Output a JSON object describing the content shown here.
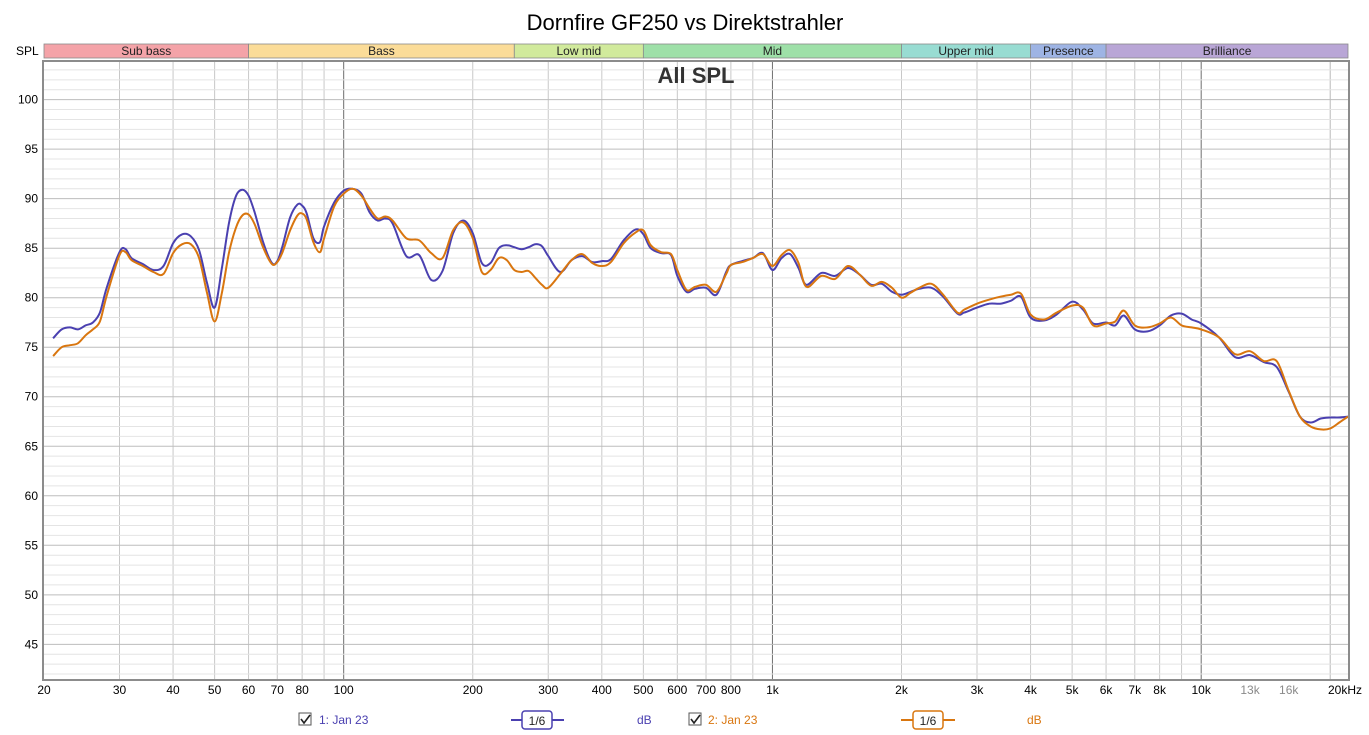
{
  "chart_data": {
    "type": "line",
    "title": "Dornfire GF250 vs Direktstrahler",
    "inner_title": "All SPL",
    "ylabel": "SPL",
    "x_scale": "log",
    "xlim": [
      20,
      22000
    ],
    "ylim": [
      41.5,
      103.8
    ],
    "grid": true,
    "y_ticks": [
      45,
      50,
      55,
      60,
      65,
      70,
      75,
      80,
      85,
      90,
      95,
      100
    ],
    "x_ticks": [
      {
        "value": 20,
        "label": "20"
      },
      {
        "value": 30,
        "label": "30"
      },
      {
        "value": 40,
        "label": "40"
      },
      {
        "value": 50,
        "label": "50"
      },
      {
        "value": 60,
        "label": "60"
      },
      {
        "value": 70,
        "label": "70"
      },
      {
        "value": 80,
        "label": "80"
      },
      {
        "value": 100,
        "label": "100"
      },
      {
        "value": 200,
        "label": "200"
      },
      {
        "value": 300,
        "label": "300"
      },
      {
        "value": 400,
        "label": "400"
      },
      {
        "value": 500,
        "label": "500"
      },
      {
        "value": 600,
        "label": "600"
      },
      {
        "value": 700,
        "label": "700"
      },
      {
        "value": 800,
        "label": "800"
      },
      {
        "value": 1000,
        "label": "1k"
      },
      {
        "value": 2000,
        "label": "2k"
      },
      {
        "value": 3000,
        "label": "3k"
      },
      {
        "value": 4000,
        "label": "4k"
      },
      {
        "value": 5000,
        "label": "5k"
      },
      {
        "value": 6000,
        "label": "6k"
      },
      {
        "value": 7000,
        "label": "7k"
      },
      {
        "value": 8000,
        "label": "8k"
      },
      {
        "value": 10000,
        "label": "10k"
      },
      {
        "value": 13000,
        "label": "13k",
        "muted": true
      },
      {
        "value": 16000,
        "label": "16k",
        "muted": true
      },
      {
        "value": 20000,
        "label": "20kHz"
      }
    ],
    "bands": [
      {
        "name": "Sub bass",
        "from": 20,
        "to": 60,
        "color": "#f4a3a8"
      },
      {
        "name": "Bass",
        "from": 60,
        "to": 250,
        "color": "#fbdc98"
      },
      {
        "name": "Low mid",
        "from": 250,
        "to": 500,
        "color": "#d1ea9c"
      },
      {
        "name": "Mid",
        "from": 500,
        "to": 2000,
        "color": "#9ee0a8"
      },
      {
        "name": "Upper mid",
        "from": 2000,
        "to": 4000,
        "color": "#98dcd2"
      },
      {
        "name": "Presence",
        "from": 4000,
        "to": 6000,
        "color": "#9eb4e4"
      },
      {
        "name": "Brilliance",
        "from": 6000,
        "to": 22000,
        "color": "#b9a6d6"
      }
    ],
    "series": [
      {
        "name": "1: Jan 23",
        "color": "#4a40b0",
        "smoothing": "1/6",
        "unit": "dB",
        "x": [
          21,
          22,
          23,
          24,
          25,
          26,
          27,
          28,
          30,
          31,
          32,
          34,
          36,
          38,
          40,
          42,
          44,
          46,
          48,
          50,
          52,
          54,
          56,
          58,
          60,
          62,
          65,
          68,
          70,
          72,
          75,
          78,
          80,
          82,
          85,
          88,
          90,
          95,
          100,
          105,
          110,
          115,
          120,
          125,
          130,
          140,
          150,
          160,
          170,
          180,
          190,
          200,
          210,
          220,
          230,
          240,
          250,
          260,
          270,
          280,
          290,
          300,
          320,
          340,
          360,
          380,
          400,
          420,
          450,
          480,
          500,
          520,
          550,
          580,
          600,
          630,
          660,
          700,
          740,
          780,
          800,
          850,
          900,
          950,
          1000,
          1050,
          1100,
          1150,
          1200,
          1300,
          1400,
          1500,
          1600,
          1700,
          1800,
          1900,
          2000,
          2100,
          2200,
          2350,
          2500,
          2700,
          2800,
          3000,
          3200,
          3400,
          3600,
          3800,
          4000,
          4300,
          4600,
          5000,
          5300,
          5600,
          6000,
          6300,
          6600,
          7000,
          7500,
          8000,
          8500,
          9000,
          9500,
          10000,
          11000,
          12000,
          13000,
          14000,
          15000,
          16000,
          17000,
          18000,
          19000,
          20000,
          21000,
          22000
        ],
        "y": [
          75.9,
          76.8,
          77.0,
          76.8,
          77.2,
          77.5,
          78.5,
          81.0,
          84.6,
          84.9,
          84.0,
          83.4,
          82.8,
          83.2,
          85.5,
          86.4,
          86.2,
          84.8,
          81.5,
          79.0,
          83.0,
          87.5,
          90.2,
          90.9,
          90.3,
          88.6,
          85.5,
          83.5,
          83.7,
          85.2,
          88.1,
          89.4,
          89.3,
          88.5,
          86.0,
          85.6,
          87.2,
          89.6,
          90.8,
          91.0,
          90.5,
          88.6,
          87.8,
          88.0,
          87.5,
          84.2,
          84.3,
          81.8,
          82.7,
          86.5,
          87.8,
          86.5,
          83.5,
          83.5,
          85.0,
          85.3,
          85.1,
          84.9,
          85.1,
          85.4,
          85.2,
          84.2,
          82.6,
          83.8,
          84.2,
          83.6,
          83.7,
          83.9,
          85.8,
          86.9,
          86.4,
          85.0,
          84.5,
          84.3,
          82.2,
          80.6,
          80.9,
          81.0,
          80.3,
          82.6,
          83.3,
          83.7,
          84.0,
          84.5,
          82.8,
          84.0,
          84.4,
          83.0,
          81.3,
          82.5,
          82.2,
          83.0,
          82.3,
          81.3,
          81.4,
          80.6,
          80.3,
          80.6,
          80.9,
          81.0,
          80.1,
          78.4,
          78.5,
          79.0,
          79.4,
          79.4,
          79.7,
          80.1,
          78.0,
          77.7,
          78.3,
          79.6,
          78.8,
          77.4,
          77.5,
          77.2,
          78.2,
          76.8,
          76.6,
          77.2,
          78.2,
          78.4,
          77.8,
          77.4,
          76.0,
          74.0,
          74.2,
          73.5,
          73.0,
          70.5,
          68.0,
          67.4,
          67.8,
          67.9,
          67.9,
          68.0
        ]
      },
      {
        "name": "2: Jan 23",
        "color": "#d9760f",
        "smoothing": "1/6",
        "unit": "dB",
        "x": [
          21,
          22,
          23,
          24,
          25,
          26,
          27,
          28,
          30,
          31,
          32,
          34,
          36,
          38,
          40,
          42,
          44,
          46,
          48,
          50,
          52,
          54,
          56,
          58,
          60,
          62,
          65,
          68,
          70,
          72,
          75,
          78,
          80,
          82,
          85,
          88,
          90,
          95,
          100,
          105,
          110,
          115,
          120,
          125,
          130,
          140,
          150,
          160,
          170,
          180,
          190,
          200,
          210,
          220,
          230,
          240,
          250,
          260,
          270,
          280,
          290,
          300,
          320,
          340,
          360,
          380,
          400,
          420,
          450,
          480,
          500,
          520,
          550,
          580,
          600,
          630,
          660,
          700,
          740,
          780,
          800,
          850,
          900,
          950,
          1000,
          1050,
          1100,
          1150,
          1200,
          1300,
          1400,
          1500,
          1600,
          1700,
          1800,
          1900,
          2000,
          2100,
          2200,
          2350,
          2500,
          2700,
          2800,
          3000,
          3200,
          3400,
          3600,
          3800,
          4000,
          4300,
          4600,
          5000,
          5300,
          5600,
          6000,
          6300,
          6600,
          7000,
          7500,
          8000,
          8500,
          9000,
          9500,
          10000,
          11000,
          12000,
          13000,
          14000,
          15000,
          16000,
          17000,
          18000,
          19000,
          20000,
          21000,
          22000
        ],
        "y": [
          74.1,
          75.0,
          75.2,
          75.4,
          76.2,
          76.8,
          77.6,
          80.2,
          84.3,
          84.6,
          83.8,
          83.2,
          82.6,
          82.4,
          84.5,
          85.4,
          85.4,
          84.0,
          80.5,
          77.6,
          80.5,
          84.5,
          87.0,
          88.3,
          88.4,
          87.4,
          85.0,
          83.4,
          83.6,
          84.6,
          86.8,
          88.3,
          88.5,
          87.9,
          85.6,
          84.6,
          86.0,
          89.2,
          90.5,
          91.0,
          90.3,
          89.0,
          88.0,
          88.2,
          87.8,
          86.0,
          85.8,
          84.5,
          84.0,
          86.8,
          87.6,
          86.0,
          82.6,
          82.8,
          84.0,
          83.8,
          82.8,
          82.6,
          82.7,
          82.0,
          81.3,
          81.0,
          82.4,
          83.8,
          84.4,
          83.5,
          83.2,
          83.6,
          85.5,
          86.6,
          86.8,
          85.3,
          84.6,
          84.4,
          82.8,
          80.8,
          81.1,
          81.3,
          80.6,
          82.4,
          83.3,
          83.6,
          84.0,
          84.4,
          83.2,
          84.3,
          84.8,
          83.5,
          81.1,
          82.2,
          81.9,
          83.2,
          82.3,
          81.2,
          81.6,
          81.0,
          80.0,
          80.5,
          81.0,
          81.4,
          80.3,
          78.5,
          78.8,
          79.4,
          79.8,
          80.1,
          80.3,
          80.4,
          78.3,
          77.8,
          78.5,
          79.2,
          79.0,
          77.2,
          77.4,
          77.6,
          78.7,
          77.2,
          77.0,
          77.4,
          78.0,
          77.2,
          77.0,
          76.8,
          76.0,
          74.3,
          74.6,
          73.6,
          73.6,
          70.6,
          68.0,
          67.0,
          66.7,
          66.8,
          67.4,
          68.0
        ]
      }
    ]
  },
  "legend": {
    "series1_label": "1: Jan 23",
    "series1_smoothing": "1/6",
    "series1_unit": "dB",
    "series2_label": "2: Jan 23",
    "series2_smoothing": "1/6",
    "series2_unit": "dB"
  }
}
